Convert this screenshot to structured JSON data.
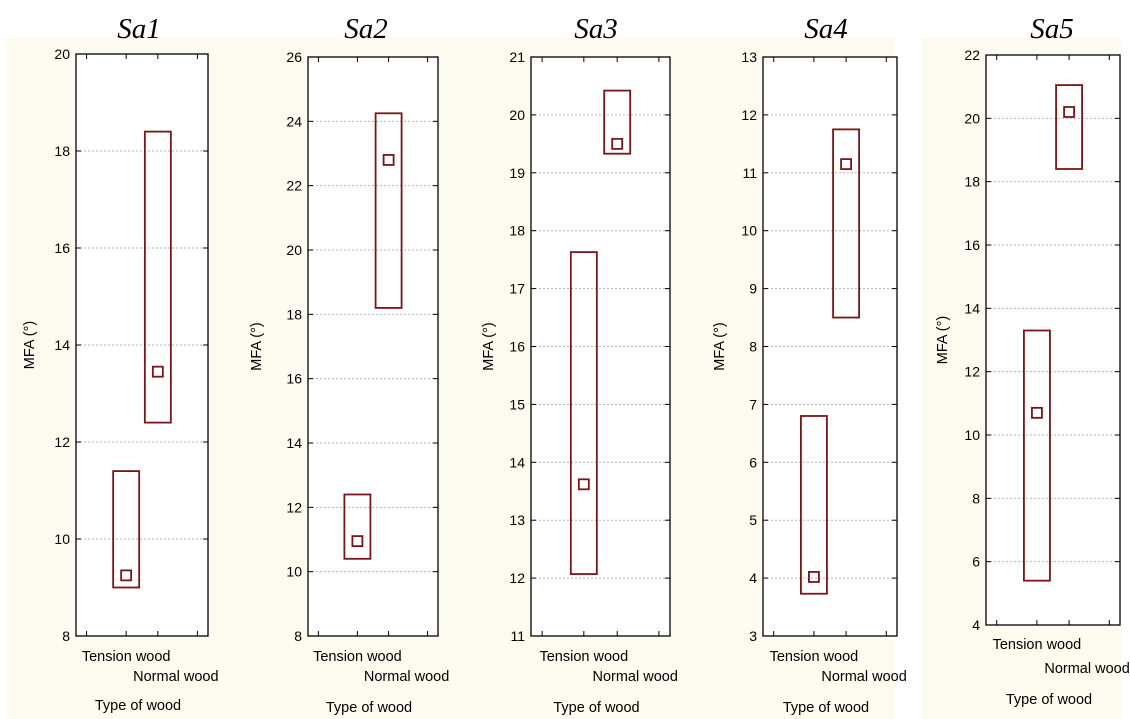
{
  "colors": {
    "panel_background": "#fdfaf0",
    "box": "#7b1416",
    "grid": "#b5b5b5"
  },
  "chart_data": [
    {
      "type": "box",
      "title": "Sa1",
      "ylabel": "MFA (°)",
      "xlabel": "Type of wood",
      "ylim": [
        8,
        20
      ],
      "yticks": [
        8,
        10,
        12,
        14,
        16,
        18,
        20
      ],
      "categories": [
        "Tension wood",
        "Normal wood"
      ],
      "boxes": [
        {
          "category": "Tension wood",
          "low": 9.0,
          "high": 11.4,
          "mean": 9.25
        },
        {
          "category": "Normal wood",
          "low": 12.4,
          "high": 18.4,
          "mean": 13.45
        }
      ],
      "grid": true
    },
    {
      "type": "box",
      "title": "Sa2",
      "ylabel": "MFA (°)",
      "xlabel": "Type of wood",
      "ylim": [
        8,
        26
      ],
      "yticks": [
        8,
        10,
        12,
        14,
        16,
        18,
        20,
        22,
        24,
        26
      ],
      "categories": [
        "Tension wood",
        "Normal wood"
      ],
      "boxes": [
        {
          "category": "Tension wood",
          "low": 10.4,
          "high": 12.4,
          "mean": 10.95
        },
        {
          "category": "Normal wood",
          "low": 18.2,
          "high": 24.25,
          "mean": 22.8
        }
      ],
      "grid": true
    },
    {
      "type": "box",
      "title": "Sa3",
      "ylabel": "MFA (°)",
      "xlabel": "Type of wood",
      "ylim": [
        11,
        21
      ],
      "yticks": [
        11,
        12,
        13,
        14,
        15,
        16,
        17,
        18,
        19,
        20,
        21
      ],
      "categories": [
        "Tension wood",
        "Normal wood"
      ],
      "boxes": [
        {
          "category": "Tension wood",
          "low": 12.07,
          "high": 17.63,
          "mean": 13.62
        },
        {
          "category": "Normal wood",
          "low": 19.33,
          "high": 20.42,
          "mean": 19.5
        }
      ],
      "grid": true
    },
    {
      "type": "box",
      "title": "Sa4",
      "ylabel": "MFA (°)",
      "xlabel": "Type of wood",
      "ylim": [
        3,
        13
      ],
      "yticks": [
        3,
        4,
        5,
        6,
        7,
        8,
        9,
        10,
        11,
        12,
        13
      ],
      "categories": [
        "Tension wood",
        "Normal wood"
      ],
      "boxes": [
        {
          "category": "Tension wood",
          "low": 3.73,
          "high": 6.8,
          "mean": 4.02
        },
        {
          "category": "Normal wood",
          "low": 8.5,
          "high": 11.75,
          "mean": 11.15
        }
      ],
      "grid": true
    },
    {
      "type": "box",
      "title": "Sa5",
      "ylabel": "MFA (°)",
      "xlabel": "Type of wood",
      "ylim": [
        4,
        22
      ],
      "yticks": [
        4,
        6,
        8,
        10,
        12,
        14,
        16,
        18,
        20,
        22
      ],
      "categories": [
        "Tension wood",
        "Normal wood"
      ],
      "boxes": [
        {
          "category": "Tension wood",
          "low": 5.4,
          "high": 13.3,
          "mean": 10.7
        },
        {
          "category": "Normal wood",
          "low": 18.4,
          "high": 21.05,
          "mean": 20.2
        }
      ],
      "grid": true
    }
  ]
}
